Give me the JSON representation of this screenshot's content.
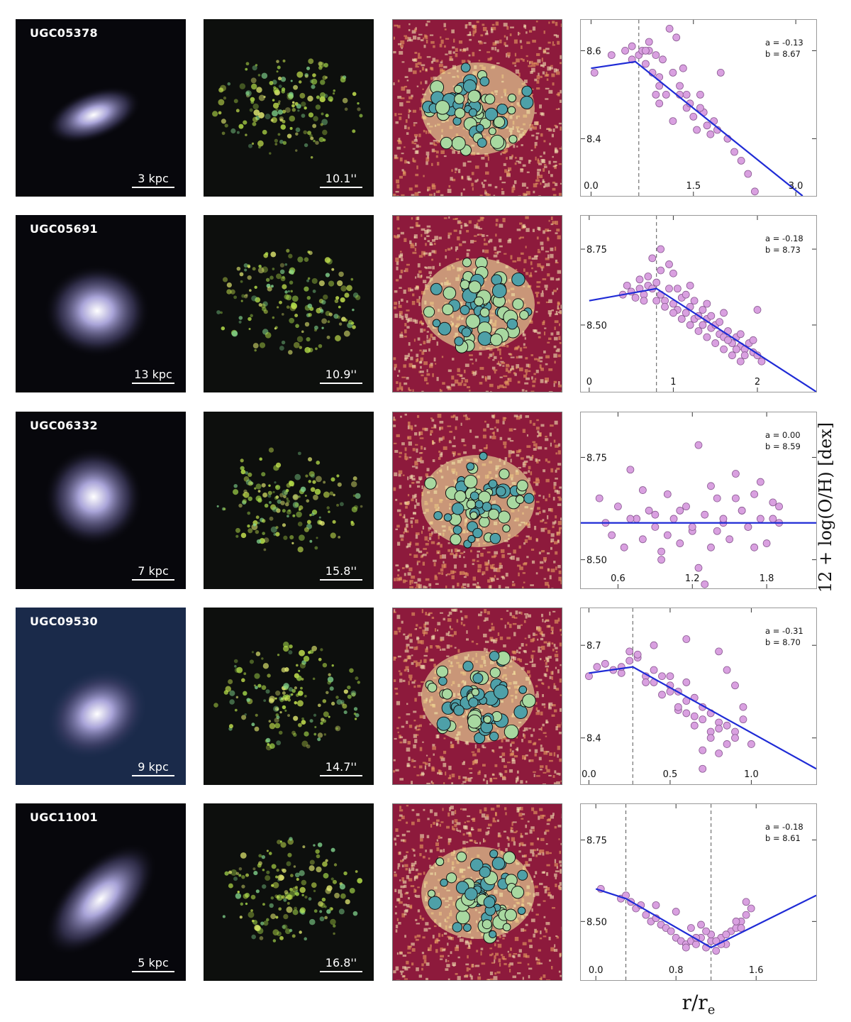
{
  "rows": [
    {
      "galaxy": "UGC05378",
      "scale_kpc": "3 kpc",
      "scale_arcsec": "10.1''",
      "fit": {
        "a": "a = -0.13",
        "b": "b = 8.67"
      },
      "ytick_labels": [
        "8.6",
        "8.4"
      ],
      "xtick_labels": [
        "0.0",
        "1.5",
        "3.0"
      ]
    },
    {
      "galaxy": "UGC05691",
      "scale_kpc": "13 kpc",
      "scale_arcsec": "10.9''",
      "fit": {
        "a": "a = -0.18",
        "b": "b = 8.73"
      },
      "ytick_labels": [
        "8.75",
        "8.50"
      ],
      "xtick_labels": [
        "0",
        "1",
        "2"
      ]
    },
    {
      "galaxy": "UGC06332",
      "scale_kpc": "7 kpc",
      "scale_arcsec": "15.8''",
      "fit": {
        "a": "a = 0.00",
        "b": "b = 8.59"
      },
      "ytick_labels": [
        "8.75",
        "8.50"
      ],
      "xtick_labels": [
        "0.6",
        "1.2",
        "1.8"
      ]
    },
    {
      "galaxy": "UGC09530",
      "scale_kpc": "9 kpc",
      "scale_arcsec": "14.7''",
      "fit": {
        "a": "a = -0.31",
        "b": "b = 8.70"
      },
      "ytick_labels": [
        "8.7",
        "8.4"
      ],
      "xtick_labels": [
        "0.0",
        "0.5",
        "1.0"
      ]
    },
    {
      "galaxy": "UGC11001",
      "scale_kpc": "5 kpc",
      "scale_arcsec": "16.8''",
      "fit": {
        "a": "a = -0.18",
        "b": "b = 8.61"
      },
      "ytick_labels": [
        "8.75",
        "8.50"
      ],
      "xtick_labels": [
        "0.0",
        "0.8",
        "1.6"
      ]
    }
  ],
  "axis": {
    "ylabel": "12 + log(O/H) [dex]",
    "xlabel_main": "r/r",
    "xlabel_sub": "e"
  },
  "colors": {
    "points": "#d9a0e0",
    "fit_line": "#1f2bd6",
    "break_line": "#555555"
  },
  "chart_data": [
    {
      "type": "scatter",
      "title": "UGC05378",
      "xlabel": "r/r_e",
      "ylabel": "12 + log(O/H) [dex]",
      "xlim": [
        -0.15,
        3.3
      ],
      "ylim": [
        8.27,
        8.67
      ],
      "xticks": [
        0.0,
        1.5,
        3.0
      ],
      "yticks": [
        8.6,
        8.4
      ],
      "breaks": [
        0.7
      ],
      "fit_line": {
        "x": [
          0.0,
          0.65,
          3.1
        ],
        "y": [
          8.56,
          8.575,
          8.27
        ]
      },
      "points": {
        "x": [
          0.05,
          0.3,
          0.5,
          0.6,
          0.7,
          0.6,
          0.8,
          0.75,
          0.9,
          0.85,
          1.0,
          1.05,
          0.95,
          0.85,
          1.2,
          1.1,
          1.0,
          1.3,
          1.4,
          1.35,
          1.5,
          1.6,
          1.7,
          1.45,
          1.25,
          1.15,
          1.55,
          1.8,
          2.0,
          2.2,
          2.3,
          2.4,
          1.9,
          1.65,
          1.75,
          2.1,
          1.3,
          1.0,
          0.8,
          0.95,
          1.2,
          1.4,
          1.6,
          1.85
        ],
        "y": [
          8.55,
          8.59,
          8.6,
          8.58,
          8.59,
          8.61,
          8.57,
          8.6,
          8.55,
          8.62,
          8.52,
          8.58,
          8.5,
          8.6,
          8.55,
          8.5,
          8.48,
          8.52,
          8.47,
          8.56,
          8.45,
          8.5,
          8.43,
          8.48,
          8.63,
          8.65,
          8.42,
          8.44,
          8.4,
          8.35,
          8.32,
          8.28,
          8.55,
          8.46,
          8.41,
          8.37,
          8.5,
          8.54,
          8.6,
          8.59,
          8.44,
          8.5,
          8.47,
          8.42
        ]
      }
    },
    {
      "type": "scatter",
      "title": "UGC05691",
      "xlabel": "r/r_e",
      "ylabel": "12 + log(O/H) [dex]",
      "xlim": [
        -0.1,
        2.7
      ],
      "ylim": [
        8.28,
        8.86
      ],
      "xticks": [
        0,
        1,
        2
      ],
      "yticks": [
        8.75,
        8.5
      ],
      "breaks": [
        0.8
      ],
      "fit_line": {
        "x": [
          0.0,
          0.8,
          2.7
        ],
        "y": [
          8.58,
          8.62,
          8.28
        ]
      },
      "points": {
        "x": [
          0.4,
          0.5,
          0.55,
          0.6,
          0.65,
          0.7,
          0.75,
          0.8,
          0.85,
          0.9,
          0.95,
          1.0,
          1.05,
          1.1,
          1.15,
          1.2,
          1.25,
          1.3,
          1.35,
          1.4,
          1.45,
          1.5,
          1.55,
          1.6,
          1.65,
          1.7,
          1.75,
          1.8,
          1.85,
          1.9,
          1.95,
          2.0,
          2.05,
          0.45,
          0.6,
          0.7,
          0.85,
          0.95,
          1.05,
          1.15,
          1.25,
          1.35,
          1.45,
          1.55,
          1.65,
          1.75,
          1.85,
          1.95,
          0.8,
          0.9,
          1.0,
          1.1,
          1.2,
          1.3,
          1.4,
          1.5,
          1.6,
          1.7,
          1.8,
          0.75,
          0.85,
          1.0,
          0.65,
          1.2,
          1.4,
          1.6,
          1.8,
          2.0
        ],
        "y": [
          8.6,
          8.61,
          8.59,
          8.62,
          8.6,
          8.63,
          8.62,
          8.64,
          8.6,
          8.58,
          8.62,
          8.57,
          8.55,
          8.59,
          8.54,
          8.56,
          8.52,
          8.53,
          8.5,
          8.52,
          8.49,
          8.5,
          8.47,
          8.46,
          8.48,
          8.44,
          8.46,
          8.43,
          8.42,
          8.44,
          8.41,
          8.4,
          8.38,
          8.63,
          8.65,
          8.66,
          8.68,
          8.7,
          8.62,
          8.6,
          8.58,
          8.55,
          8.53,
          8.51,
          8.45,
          8.42,
          8.4,
          8.45,
          8.58,
          8.56,
          8.54,
          8.52,
          8.5,
          8.48,
          8.46,
          8.44,
          8.42,
          8.4,
          8.38,
          8.72,
          8.75,
          8.67,
          8.58,
          8.63,
          8.57,
          8.54,
          8.47,
          8.55
        ]
      }
    },
    {
      "type": "scatter",
      "title": "UGC06332",
      "xlabel": "r/r_e",
      "ylabel": "12 + log(O/H) [dex]",
      "xlim": [
        0.3,
        2.2
      ],
      "ylim": [
        8.43,
        8.86
      ],
      "xticks": [
        0.6,
        1.2,
        1.8
      ],
      "yticks": [
        8.75,
        8.5
      ],
      "breaks": [],
      "fit_line": {
        "x": [
          0.3,
          2.2
        ],
        "y": [
          8.59,
          8.59
        ]
      },
      "points": {
        "x": [
          0.45,
          0.55,
          0.6,
          0.7,
          0.75,
          0.8,
          0.85,
          0.9,
          0.95,
          1.0,
          1.05,
          1.1,
          1.15,
          1.2,
          1.25,
          1.3,
          1.35,
          1.4,
          1.45,
          1.5,
          1.55,
          1.6,
          1.65,
          1.7,
          1.75,
          1.8,
          1.85,
          1.9,
          0.65,
          0.8,
          0.95,
          1.1,
          1.25,
          1.4,
          1.55,
          1.7,
          1.85,
          0.5,
          0.9,
          1.3,
          1.6,
          1.75,
          1.2,
          1.45,
          1.0,
          0.7,
          1.65,
          1.35,
          1.9
        ],
        "y": [
          8.65,
          8.56,
          8.63,
          8.72,
          8.6,
          8.55,
          8.62,
          8.58,
          8.52,
          8.66,
          8.6,
          8.54,
          8.63,
          8.57,
          8.78,
          8.61,
          8.53,
          8.65,
          8.59,
          8.55,
          8.71,
          8.62,
          8.58,
          8.66,
          8.6,
          8.54,
          8.64,
          8.59,
          8.53,
          8.67,
          8.5,
          8.62,
          8.48,
          8.57,
          8.65,
          8.53,
          8.6,
          8.59,
          8.61,
          8.44,
          8.62,
          8.69,
          8.58,
          8.6,
          8.56,
          8.6,
          8.58,
          8.68,
          8.63
        ]
      }
    },
    {
      "type": "scatter",
      "title": "UGC09530",
      "xlabel": "r/r_e",
      "ylabel": "12 + log(O/H) [dex]",
      "xlim": [
        -0.05,
        1.4
      ],
      "ylim": [
        8.25,
        8.82
      ],
      "xticks": [
        0.0,
        0.5,
        1.0
      ],
      "yticks": [
        8.7,
        8.4
      ],
      "breaks": [
        0.27
      ],
      "fit_line": {
        "x": [
          0.0,
          0.27,
          1.4
        ],
        "y": [
          8.61,
          8.63,
          8.3
        ]
      },
      "points": {
        "x": [
          0.0,
          0.05,
          0.1,
          0.15,
          0.2,
          0.25,
          0.3,
          0.35,
          0.4,
          0.45,
          0.5,
          0.55,
          0.6,
          0.65,
          0.7,
          0.75,
          0.8,
          0.85,
          0.9,
          0.95,
          1.0,
          0.3,
          0.4,
          0.5,
          0.6,
          0.7,
          0.8,
          0.9,
          0.35,
          0.45,
          0.55,
          0.65,
          0.75,
          0.85,
          0.5,
          0.6,
          0.7,
          0.8,
          0.55,
          0.65,
          0.75,
          0.85,
          0.95,
          0.4,
          0.6,
          0.8,
          0.9,
          0.7,
          0.25,
          0.2
        ],
        "y": [
          8.6,
          8.63,
          8.64,
          8.62,
          8.61,
          8.65,
          8.66,
          8.6,
          8.58,
          8.6,
          8.57,
          8.55,
          8.58,
          8.53,
          8.5,
          8.48,
          8.45,
          8.44,
          8.42,
          8.46,
          8.38,
          8.67,
          8.62,
          8.55,
          8.52,
          8.46,
          8.43,
          8.4,
          8.58,
          8.54,
          8.49,
          8.44,
          8.42,
          8.38,
          8.6,
          8.48,
          8.36,
          8.35,
          8.5,
          8.47,
          8.4,
          8.62,
          8.5,
          8.7,
          8.72,
          8.68,
          8.57,
          8.3,
          8.68,
          8.63
        ]
      }
    },
    {
      "type": "scatter",
      "title": "UGC11001",
      "xlabel": "r/r_e",
      "ylabel": "12 + log(O/H) [dex]",
      "xlim": [
        -0.15,
        2.2
      ],
      "ylim": [
        8.32,
        8.86
      ],
      "xticks": [
        0.0,
        0.8,
        1.6
      ],
      "yticks": [
        8.75,
        8.5
      ],
      "breaks": [
        0.3,
        1.15
      ],
      "fit_line": {
        "x": [
          0.0,
          0.3,
          1.15,
          2.2
        ],
        "y": [
          8.6,
          8.57,
          8.42,
          8.58
        ]
      },
      "points": {
        "x": [
          0.05,
          0.25,
          0.3,
          0.35,
          0.4,
          0.45,
          0.5,
          0.55,
          0.6,
          0.65,
          0.7,
          0.75,
          0.8,
          0.85,
          0.9,
          0.95,
          1.0,
          1.05,
          1.1,
          1.15,
          1.2,
          1.25,
          1.3,
          1.35,
          1.4,
          1.45,
          1.5,
          1.55,
          0.6,
          0.8,
          0.95,
          1.05,
          1.15,
          1.25,
          1.4,
          1.5,
          0.9,
          1.0,
          1.1,
          1.2,
          1.3,
          1.45
        ],
        "y": [
          8.6,
          8.57,
          8.58,
          8.56,
          8.54,
          8.55,
          8.52,
          8.5,
          8.51,
          8.49,
          8.48,
          8.47,
          8.45,
          8.44,
          8.43,
          8.44,
          8.43,
          8.45,
          8.42,
          8.44,
          8.41,
          8.45,
          8.43,
          8.47,
          8.48,
          8.5,
          8.52,
          8.54,
          8.55,
          8.53,
          8.48,
          8.49,
          8.46,
          8.43,
          8.5,
          8.56,
          8.42,
          8.45,
          8.47,
          8.44,
          8.46,
          8.48
        ]
      }
    }
  ]
}
